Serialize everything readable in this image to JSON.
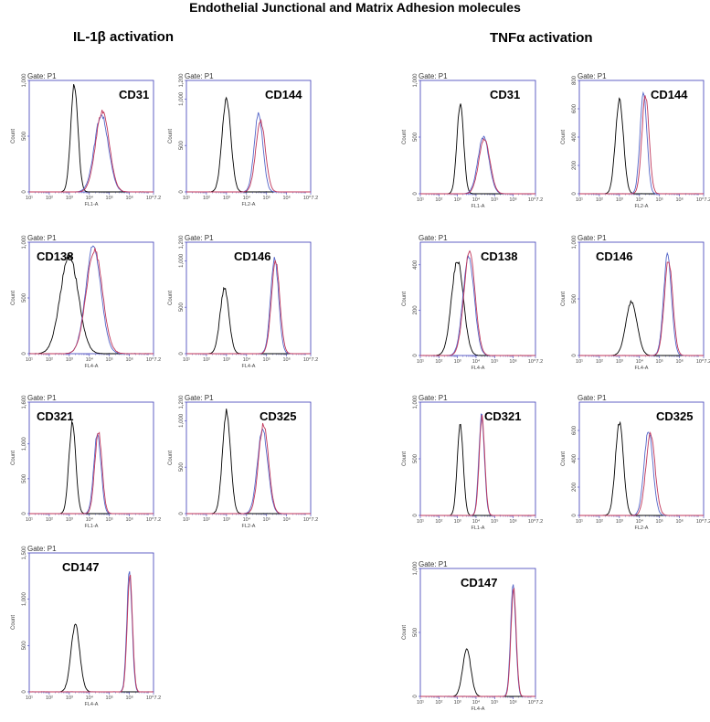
{
  "figure": {
    "title": "Endothelial Junctional and Matrix Adhesion molecules",
    "columns": [
      "IL-1β activation",
      "TNFα activation"
    ]
  },
  "colors": {
    "control": "#000000",
    "sample_blue": "#5566c8",
    "sample_red": "#c0365a",
    "axis": "#3a3ab8"
  },
  "chart_data": [
    {
      "type": "histogram",
      "panel": "IL1B-CD31",
      "marker": "CD31",
      "gate": "Gate: P1",
      "xlabel": "FL1-A",
      "ylabel": "Count",
      "xlim_log10": [
        1,
        7.2
      ],
      "ylim": [
        0,
        1000
      ],
      "yticks": [
        "0",
        "500",
        "1,000"
      ],
      "xticks": [
        "10¹",
        "10²",
        "10³",
        "10⁴",
        "10⁵",
        "10⁶",
        "10^7.2"
      ],
      "series": [
        {
          "name": "control",
          "peak_log10": 3.25,
          "height": 960,
          "width": 0.18
        },
        {
          "name": "sample_blue",
          "peak_log10": 4.6,
          "height": 690,
          "width": 0.35
        },
        {
          "name": "sample_red",
          "peak_log10": 4.65,
          "height": 720,
          "width": 0.34
        }
      ]
    },
    {
      "type": "histogram",
      "panel": "IL1B-CD144",
      "marker": "CD144",
      "gate": "Gate: P1",
      "xlabel": "FL2-A",
      "ylabel": "Count",
      "xlim_log10": [
        1,
        7.2
      ],
      "ylim": [
        0,
        1200
      ],
      "yticks": [
        "0",
        "500",
        "1,000",
        "1,200"
      ],
      "xticks": [
        "10¹",
        "10²",
        "10³",
        "10⁴",
        "10⁵",
        "10⁶",
        "10^7.2"
      ],
      "series": [
        {
          "name": "control",
          "peak_log10": 3.0,
          "height": 1000,
          "width": 0.22
        },
        {
          "name": "sample_blue",
          "peak_log10": 4.6,
          "height": 840,
          "width": 0.22
        },
        {
          "name": "sample_red",
          "peak_log10": 4.7,
          "height": 760,
          "width": 0.24
        }
      ]
    },
    {
      "type": "histogram",
      "panel": "IL1B-CD138",
      "marker": "CD138",
      "gate": "Gate: P1",
      "xlabel": "FL4-A",
      "ylabel": "Count",
      "xlim_log10": [
        1,
        7.2
      ],
      "ylim": [
        0,
        1000
      ],
      "yticks": [
        "0",
        "500",
        "1,000"
      ],
      "xticks": [
        "10¹",
        "10²",
        "10³",
        "10⁴",
        "10⁵",
        "10⁶",
        "10^7.2"
      ],
      "series": [
        {
          "name": "control",
          "peak_log10": 3.0,
          "height": 880,
          "width": 0.45
        },
        {
          "name": "sample_blue",
          "peak_log10": 4.2,
          "height": 960,
          "width": 0.38
        },
        {
          "name": "sample_red",
          "peak_log10": 4.25,
          "height": 930,
          "width": 0.4
        }
      ]
    },
    {
      "type": "histogram",
      "panel": "IL1B-CD146",
      "marker": "CD146",
      "gate": "Gate: P1",
      "xlabel": "FL4-A",
      "ylabel": "Count",
      "xlim_log10": [
        1,
        7.2
      ],
      "ylim": [
        0,
        1200
      ],
      "yticks": [
        "0",
        "500",
        "1,000",
        "1,200"
      ],
      "xticks": [
        "10¹",
        "10²",
        "10³",
        "10⁴",
        "10⁵",
        "10⁶",
        "10^7.2"
      ],
      "series": [
        {
          "name": "control",
          "peak_log10": 2.9,
          "height": 700,
          "width": 0.22
        },
        {
          "name": "sample_blue",
          "peak_log10": 5.4,
          "height": 1020,
          "width": 0.2
        },
        {
          "name": "sample_red",
          "peak_log10": 5.45,
          "height": 980,
          "width": 0.21
        }
      ]
    },
    {
      "type": "histogram",
      "panel": "IL1B-CD321",
      "marker": "CD321",
      "gate": "Gate: P1",
      "xlabel": "FL1-A",
      "ylabel": "Count",
      "xlim_log10": [
        1,
        7.2
      ],
      "ylim": [
        0,
        1600
      ],
      "yticks": [
        "0",
        "500",
        "1,000",
        "1,600"
      ],
      "xticks": [
        "10¹",
        "10²",
        "10³",
        "10⁴",
        "10⁵",
        "10⁶",
        "10^7.2"
      ],
      "series": [
        {
          "name": "control",
          "peak_log10": 3.15,
          "height": 1300,
          "width": 0.17
        },
        {
          "name": "sample_blue",
          "peak_log10": 4.4,
          "height": 1150,
          "width": 0.18
        },
        {
          "name": "sample_red",
          "peak_log10": 4.45,
          "height": 1180,
          "width": 0.18
        }
      ]
    },
    {
      "type": "histogram",
      "panel": "IL1B-CD325",
      "marker": "CD325",
      "gate": "Gate: P1",
      "xlabel": "FL2-A",
      "ylabel": "Count",
      "xlim_log10": [
        1,
        7.2
      ],
      "ylim": [
        0,
        1200
      ],
      "yticks": [
        "0",
        "500",
        "1,000",
        "1,200"
      ],
      "xticks": [
        "10¹",
        "10²",
        "10³",
        "10⁴",
        "10⁵",
        "10⁶",
        "10^7.2"
      ],
      "series": [
        {
          "name": "control",
          "peak_log10": 3.0,
          "height": 1100,
          "width": 0.2
        },
        {
          "name": "sample_blue",
          "peak_log10": 4.8,
          "height": 900,
          "width": 0.26
        },
        {
          "name": "sample_red",
          "peak_log10": 4.85,
          "height": 960,
          "width": 0.25
        }
      ]
    },
    {
      "type": "histogram",
      "panel": "IL1B-CD147",
      "marker": "CD147",
      "gate": "Gate: P1",
      "xlabel": "FL4-A",
      "ylabel": "Count",
      "xlim_log10": [
        1,
        7.2
      ],
      "ylim": [
        0,
        1500
      ],
      "yticks": [
        "0",
        "500",
        "1,000",
        "1,500"
      ],
      "xticks": [
        "10¹",
        "10²",
        "10³",
        "10⁴",
        "10⁵",
        "10⁶",
        "10^7.2"
      ],
      "series": [
        {
          "name": "control",
          "peak_log10": 3.3,
          "height": 720,
          "width": 0.22
        },
        {
          "name": "sample_blue",
          "peak_log10": 6.0,
          "height": 1300,
          "width": 0.13
        },
        {
          "name": "sample_red",
          "peak_log10": 6.02,
          "height": 1280,
          "width": 0.13
        }
      ]
    },
    {
      "type": "histogram",
      "panel": "TNF-CD31",
      "marker": "CD31",
      "gate": "Gate: P1",
      "xlabel": "FL1-A",
      "ylabel": "Count",
      "xlim_log10": [
        1,
        7.2
      ],
      "ylim": [
        0,
        1000
      ],
      "yticks": [
        "0",
        "500",
        "1,000"
      ],
      "xticks": [
        "10¹",
        "10²",
        "10³",
        "10⁴",
        "10⁵",
        "10⁶",
        "10^7.2"
      ],
      "series": [
        {
          "name": "control",
          "peak_log10": 3.15,
          "height": 800,
          "width": 0.18
        },
        {
          "name": "sample_blue",
          "peak_log10": 4.4,
          "height": 500,
          "width": 0.3
        },
        {
          "name": "sample_red",
          "peak_log10": 4.45,
          "height": 480,
          "width": 0.3
        }
      ]
    },
    {
      "type": "histogram",
      "panel": "TNF-CD144",
      "marker": "CD144",
      "gate": "Gate: P1",
      "xlabel": "FL2-A",
      "ylabel": "Count",
      "xlim_log10": [
        1,
        7.2
      ],
      "ylim": [
        0,
        800
      ],
      "yticks": [
        "0",
        "200",
        "400",
        "600",
        "800"
      ],
      "xticks": [
        "10¹",
        "10²",
        "10³",
        "10⁴",
        "10⁵",
        "10⁶",
        "10^7.2"
      ],
      "series": [
        {
          "name": "control",
          "peak_log10": 3.0,
          "height": 660,
          "width": 0.2
        },
        {
          "name": "sample_blue",
          "peak_log10": 4.2,
          "height": 720,
          "width": 0.17
        },
        {
          "name": "sample_red",
          "peak_log10": 4.3,
          "height": 690,
          "width": 0.18
        }
      ]
    },
    {
      "type": "histogram",
      "panel": "TNF-CD138",
      "marker": "CD138",
      "gate": "Gate: P1",
      "xlabel": "FL4-A",
      "ylabel": "Count",
      "xlim_log10": [
        1,
        7.2
      ],
      "ylim": [
        0,
        500
      ],
      "yticks": [
        "0",
        "200",
        "400"
      ],
      "xticks": [
        "10¹",
        "10²",
        "10³",
        "10⁴",
        "10⁵",
        "10⁶",
        "10^7.2"
      ],
      "series": [
        {
          "name": "control",
          "peak_log10": 3.0,
          "height": 420,
          "width": 0.32
        },
        {
          "name": "sample_blue",
          "peak_log10": 3.6,
          "height": 440,
          "width": 0.3
        },
        {
          "name": "sample_red",
          "peak_log10": 3.65,
          "height": 460,
          "width": 0.3
        }
      ]
    },
    {
      "type": "histogram",
      "panel": "TNF-CD146",
      "marker": "CD146",
      "gate": "Gate: P1",
      "xlabel": "FL4-A",
      "ylabel": "Count",
      "xlim_log10": [
        1,
        7.2
      ],
      "ylim": [
        0,
        1000
      ],
      "yticks": [
        "0",
        "500",
        "1,000"
      ],
      "xticks": [
        "10¹",
        "10²",
        "10³",
        "10⁴",
        "10⁵",
        "10⁶",
        "10^7.2"
      ],
      "series": [
        {
          "name": "control",
          "peak_log10": 3.6,
          "height": 470,
          "width": 0.28
        },
        {
          "name": "sample_blue",
          "peak_log10": 5.4,
          "height": 880,
          "width": 0.2
        },
        {
          "name": "sample_red",
          "peak_log10": 5.45,
          "height": 840,
          "width": 0.21
        }
      ]
    },
    {
      "type": "histogram",
      "panel": "TNF-CD321",
      "marker": "CD321",
      "gate": "Gate: P1",
      "xlabel": "FL1-A",
      "ylabel": "Count",
      "xlim_log10": [
        1,
        7.2
      ],
      "ylim": [
        0,
        1000
      ],
      "yticks": [
        "0",
        "500",
        "1,000"
      ],
      "xticks": [
        "10¹",
        "10²",
        "10³",
        "10⁴",
        "10⁵",
        "10⁶",
        "10^7.2"
      ],
      "series": [
        {
          "name": "control",
          "peak_log10": 3.15,
          "height": 810,
          "width": 0.16
        },
        {
          "name": "sample_blue",
          "peak_log10": 4.3,
          "height": 880,
          "width": 0.15
        },
        {
          "name": "sample_red",
          "peak_log10": 4.32,
          "height": 860,
          "width": 0.15
        }
      ]
    },
    {
      "type": "histogram",
      "panel": "TNF-CD325",
      "marker": "CD325",
      "gate": "Gate: P1",
      "xlabel": "FL2-A",
      "ylabel": "Count",
      "xlim_log10": [
        1,
        7.2
      ],
      "ylim": [
        0,
        800
      ],
      "yticks": [
        "0",
        "200",
        "400",
        "600"
      ],
      "xticks": [
        "10¹",
        "10²",
        "10³",
        "10⁴",
        "10⁵",
        "10⁶",
        "10^7.2"
      ],
      "series": [
        {
          "name": "control",
          "peak_log10": 3.0,
          "height": 660,
          "width": 0.2
        },
        {
          "name": "sample_blue",
          "peak_log10": 4.45,
          "height": 600,
          "width": 0.22
        },
        {
          "name": "sample_red",
          "peak_log10": 4.55,
          "height": 570,
          "width": 0.23
        }
      ]
    },
    {
      "type": "histogram",
      "panel": "TNF-CD147",
      "marker": "CD147",
      "gate": "Gate: P1",
      "xlabel": "FL4-A",
      "ylabel": "Count",
      "xlim_log10": [
        1,
        7.2
      ],
      "ylim": [
        0,
        1000
      ],
      "yticks": [
        "0",
        "500",
        "1,000"
      ],
      "xticks": [
        "10¹",
        "10²",
        "10³",
        "10⁴",
        "10⁵",
        "10⁶",
        "10^7.2"
      ],
      "series": [
        {
          "name": "control",
          "peak_log10": 3.5,
          "height": 370,
          "width": 0.22
        },
        {
          "name": "sample_blue",
          "peak_log10": 6.0,
          "height": 860,
          "width": 0.14
        },
        {
          "name": "sample_red",
          "peak_log10": 6.02,
          "height": 840,
          "width": 0.14
        }
      ]
    }
  ]
}
